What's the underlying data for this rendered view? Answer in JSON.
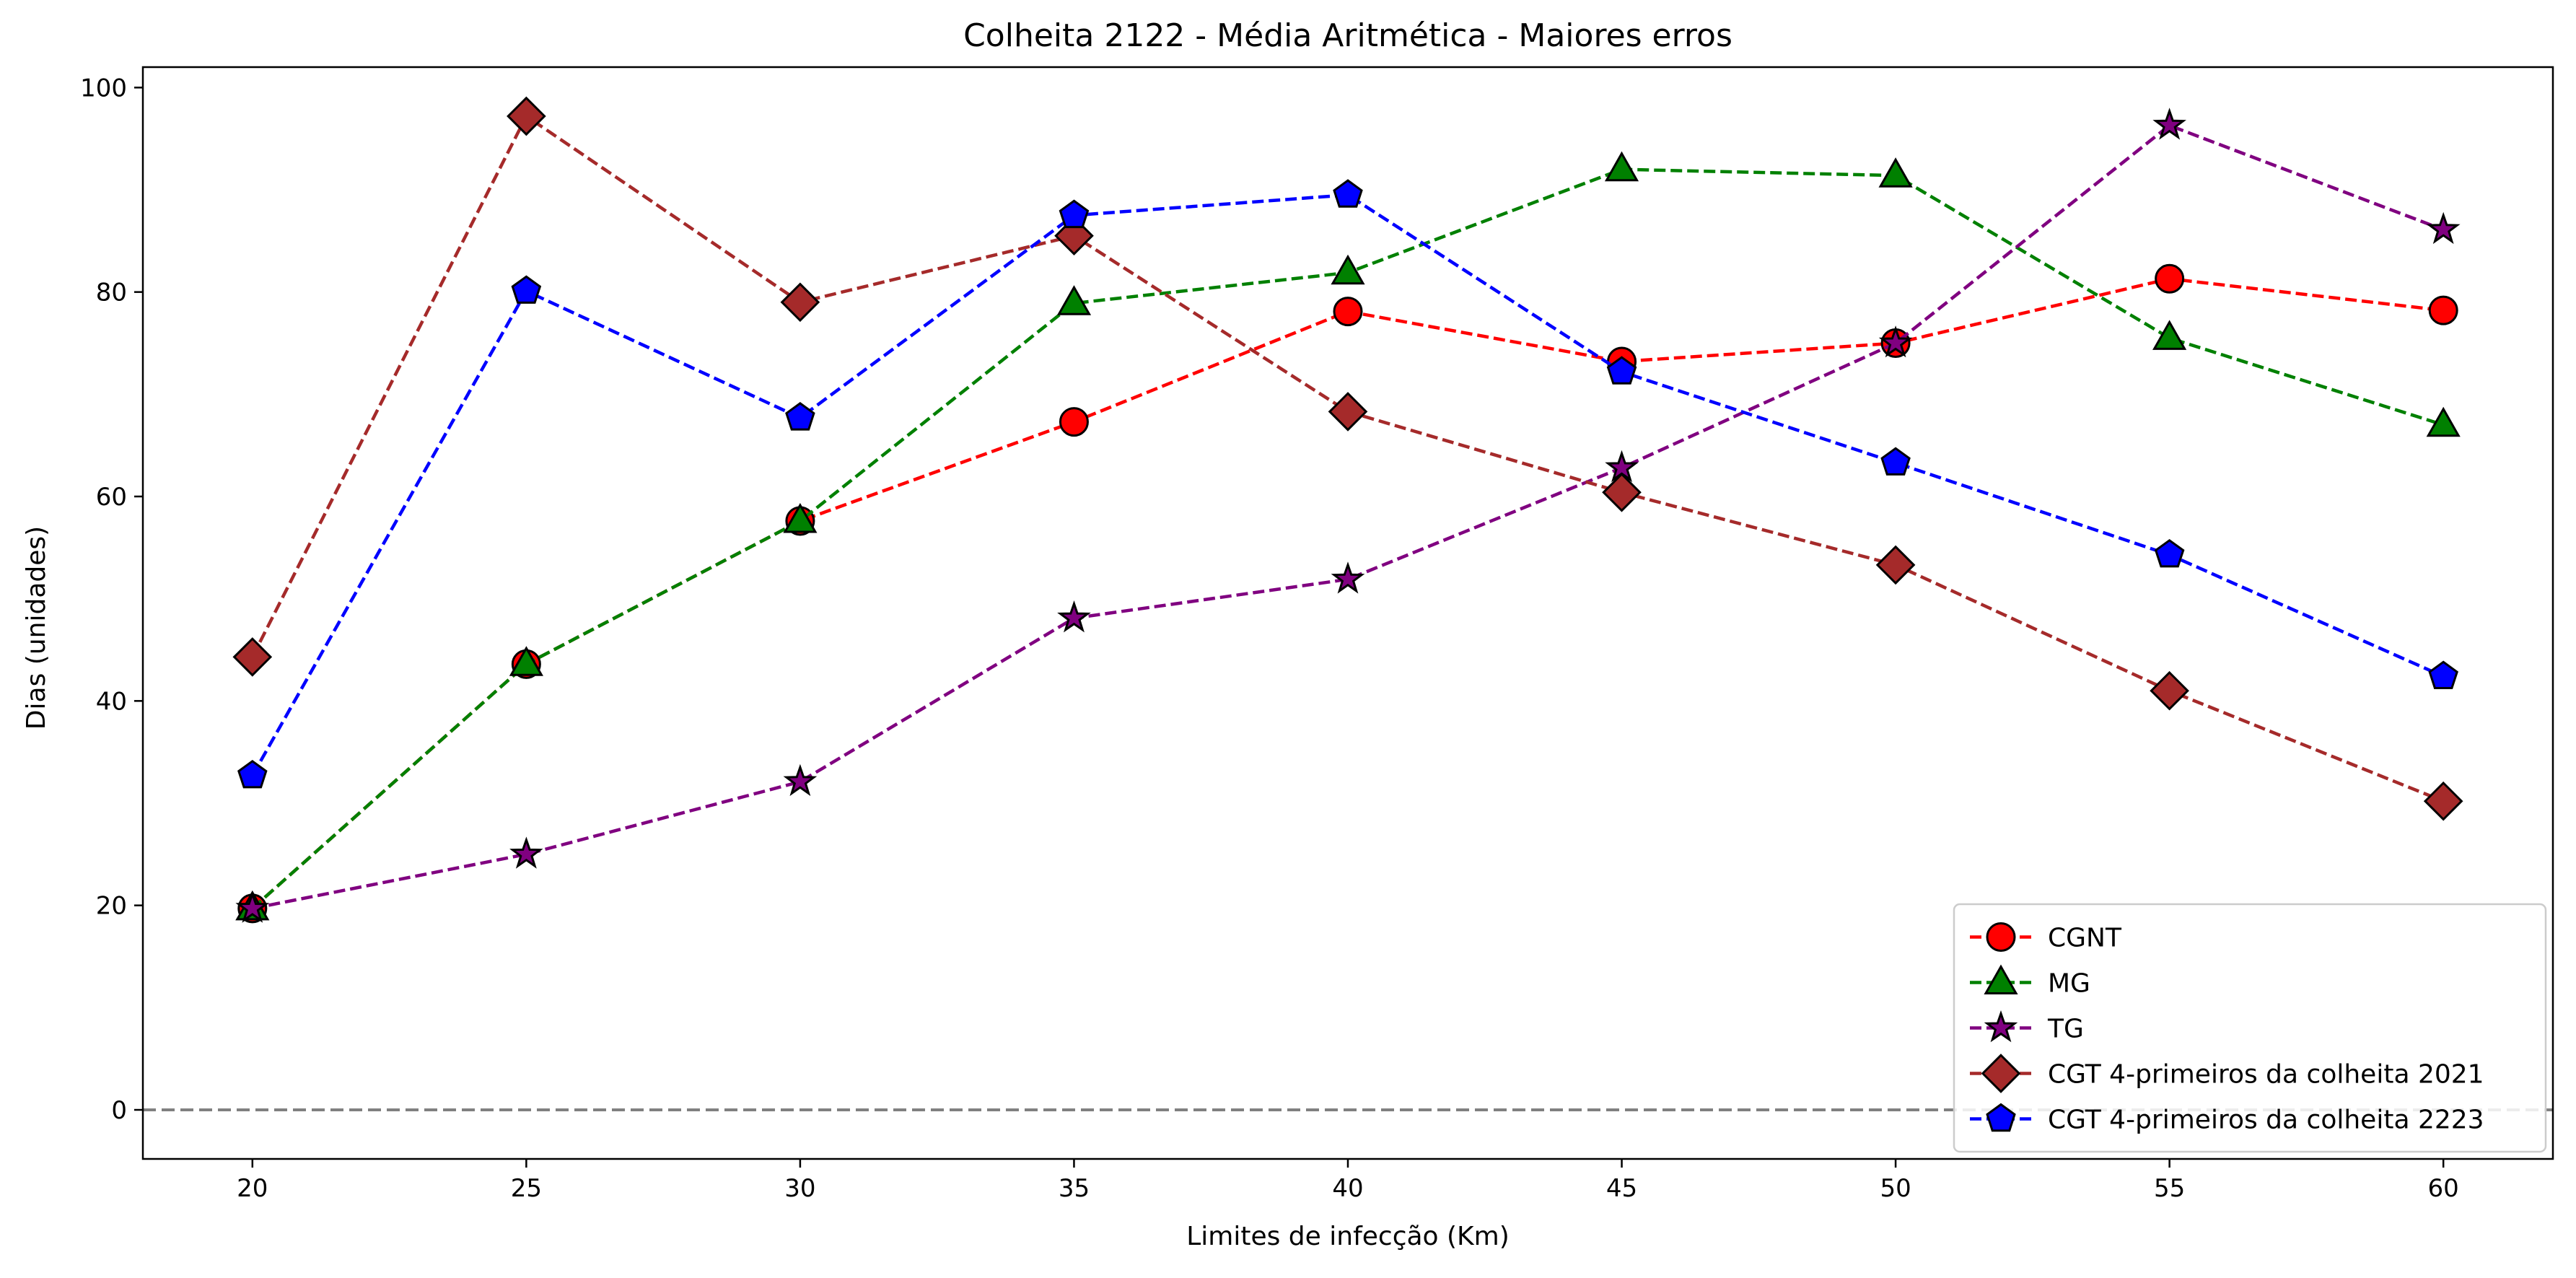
{
  "chart_data": {
    "type": "line",
    "title": "Colheita 2122 - Média Aritmética - Maiores erros",
    "xlabel": "Limites de infecção (Km)",
    "ylabel": "Dias (unidades)",
    "x": [
      20,
      25,
      30,
      35,
      40,
      45,
      50,
      55,
      60
    ],
    "x_ticks": [
      "20",
      "25",
      "30",
      "35",
      "40",
      "45",
      "50",
      "55",
      "60"
    ],
    "y_ticks": [
      "0",
      "20",
      "40",
      "60",
      "80",
      "100"
    ],
    "xlim": [
      18,
      62
    ],
    "ylim": [
      -4.8,
      102
    ],
    "grid": false,
    "legend_position": "bottom-right",
    "reference_line": {
      "y": 0,
      "style": "dashed",
      "color": "#808080"
    },
    "series": [
      {
        "name": "CGNT",
        "color": "#ff0000",
        "marker": "circle",
        "values": [
          19.7,
          43.6,
          57.6,
          67.3,
          78.1,
          73.2,
          75.0,
          81.3,
          78.2
        ]
      },
      {
        "name": "MG",
        "color": "#008000",
        "marker": "triangle",
        "values": [
          19.7,
          43.6,
          57.6,
          78.9,
          81.9,
          92.0,
          91.4,
          75.5,
          67.0
        ]
      },
      {
        "name": "TG",
        "color": "#800080",
        "marker": "star",
        "values": [
          19.7,
          25.0,
          32.1,
          48.1,
          51.9,
          62.8,
          75.0,
          96.3,
          86.1
        ]
      },
      {
        "name": "CGT 4-primeiros da colheita 2021",
        "color": "#a52a2a",
        "marker": "diamond",
        "values": [
          44.3,
          97.2,
          79.0,
          85.5,
          68.3,
          60.4,
          53.3,
          41.0,
          30.2
        ]
      },
      {
        "name": "CGT 4-primeiros da colheita 2223",
        "color": "#0000ff",
        "marker": "pentagon",
        "values": [
          32.7,
          80.1,
          67.7,
          87.5,
          89.5,
          72.2,
          63.3,
          54.3,
          42.4
        ]
      }
    ]
  }
}
